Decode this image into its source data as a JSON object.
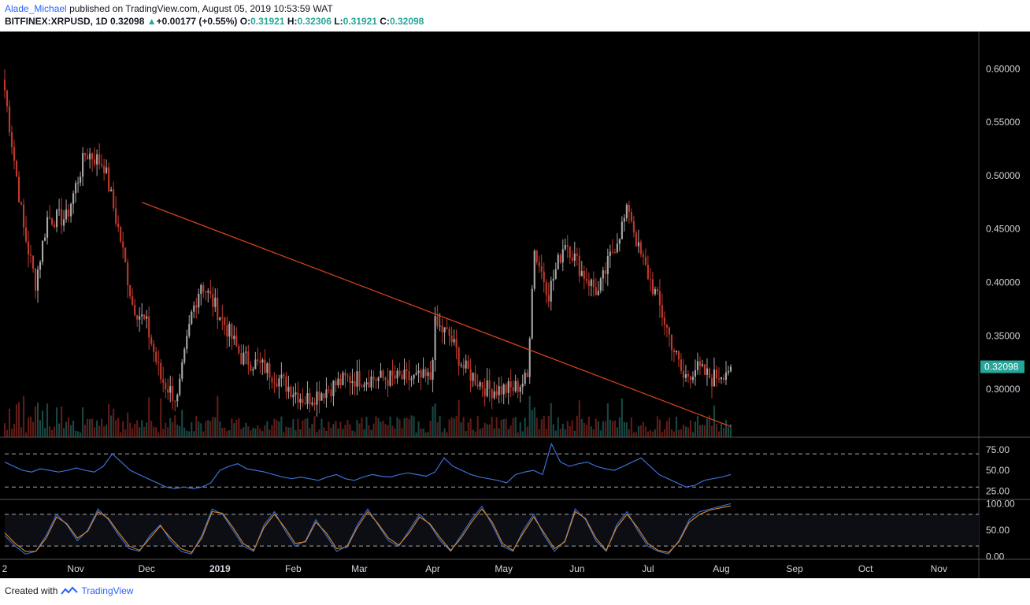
{
  "header": {
    "author": "Alade_Michael",
    "published": "published on TradingView.com, August 05, 2019 10:53:59 WAT",
    "symbol": "BITFINEX:XRPUSD, 1D",
    "last": "0.32098",
    "change_arrow": "▲",
    "change": "+0.00177 (+0.55%)",
    "o_label": "O:",
    "o_value": "0.31921",
    "h_label": "H:",
    "h_value": "0.32306",
    "l_label": "L:",
    "l_value": "0.31921",
    "c_label": "C:",
    "c_value": "0.32098"
  },
  "footer": {
    "created": "Created with",
    "brand": "TradingView"
  },
  "colors": {
    "background": "#000000",
    "up": "#a8a8a8",
    "down": "#c0392b",
    "trend": "#e0441f",
    "rsi": "#3b6fd6",
    "stoch_k": "#3b6fd6",
    "stoch_d": "#d4892b",
    "price_tag": "#26a69a",
    "axis_text": "#d1d4dc"
  },
  "chart_data": [
    {
      "type": "candlestick",
      "title": "",
      "xlabel": "",
      "ylabel": "",
      "x_tick_labels": [
        "2",
        "Nov",
        "Dec",
        "2019",
        "Feb",
        "Mar",
        "Apr",
        "May",
        "Jun",
        "Jul",
        "Aug",
        "Sep",
        "Oct",
        "Nov"
      ],
      "y_tick_labels": [
        "0.60000",
        "0.55000",
        "0.50000",
        "0.45000",
        "0.40000",
        "0.35000",
        "0.30000"
      ],
      "ylim": [
        0.255,
        0.635
      ],
      "current_price_label": "0.32098",
      "price_path": [
        {
          "date": "2018-10-02",
          "close": 0.58
        },
        {
          "date": "2018-10-10",
          "close": 0.45
        },
        {
          "date": "2018-10-15",
          "close": 0.4
        },
        {
          "date": "2018-10-20",
          "close": 0.46
        },
        {
          "date": "2018-10-28",
          "close": 0.46
        },
        {
          "date": "2018-11-05",
          "close": 0.52
        },
        {
          "date": "2018-11-07",
          "close": 0.52
        },
        {
          "date": "2018-11-13",
          "close": 0.51
        },
        {
          "date": "2018-11-20",
          "close": 0.44
        },
        {
          "date": "2018-11-25",
          "close": 0.38
        },
        {
          "date": "2018-12-01",
          "close": 0.36
        },
        {
          "date": "2018-12-07",
          "close": 0.31
        },
        {
          "date": "2018-12-14",
          "close": 0.29
        },
        {
          "date": "2018-12-20",
          "close": 0.37
        },
        {
          "date": "2018-12-24",
          "close": 0.4
        },
        {
          "date": "2019-01-01",
          "close": 0.37
        },
        {
          "date": "2019-01-10",
          "close": 0.33
        },
        {
          "date": "2019-01-20",
          "close": 0.32
        },
        {
          "date": "2019-02-06",
          "close": 0.29
        },
        {
          "date": "2019-02-24",
          "close": 0.31
        },
        {
          "date": "2019-03-01",
          "close": 0.31
        },
        {
          "date": "2019-03-20",
          "close": 0.31
        },
        {
          "date": "2019-03-31",
          "close": 0.31
        },
        {
          "date": "2019-04-02",
          "close": 0.36
        },
        {
          "date": "2019-04-08",
          "close": 0.35
        },
        {
          "date": "2019-04-14",
          "close": 0.32
        },
        {
          "date": "2019-04-24",
          "close": 0.3
        },
        {
          "date": "2019-05-05",
          "close": 0.3
        },
        {
          "date": "2019-05-11",
          "close": 0.31
        },
        {
          "date": "2019-05-13",
          "close": 0.4
        },
        {
          "date": "2019-05-14",
          "close": 0.43
        },
        {
          "date": "2019-05-20",
          "close": 0.39
        },
        {
          "date": "2019-05-27",
          "close": 0.44
        },
        {
          "date": "2019-06-03",
          "close": 0.41
        },
        {
          "date": "2019-06-10",
          "close": 0.39
        },
        {
          "date": "2019-06-16",
          "close": 0.43
        },
        {
          "date": "2019-06-23",
          "close": 0.47
        },
        {
          "date": "2019-06-27",
          "close": 0.43
        },
        {
          "date": "2019-07-04",
          "close": 0.39
        },
        {
          "date": "2019-07-10",
          "close": 0.35
        },
        {
          "date": "2019-07-16",
          "close": 0.31
        },
        {
          "date": "2019-07-21",
          "close": 0.32
        },
        {
          "date": "2019-07-28",
          "close": 0.31
        },
        {
          "date": "2019-08-05",
          "close": 0.32098
        }
      ],
      "trendline": [
        {
          "date": "2018-11-29",
          "price": 0.475
        },
        {
          "date": "2019-08-05",
          "price": 0.265
        }
      ]
    },
    {
      "type": "line",
      "title": "",
      "y_tick_labels": [
        "75.00",
        "50.00",
        "25.00"
      ],
      "ylim": [
        15,
        90
      ],
      "levels": [
        70,
        30
      ],
      "series": [
        {
          "values": [
            60,
            55,
            50,
            48,
            52,
            50,
            48,
            50,
            53,
            50,
            48,
            55,
            70,
            60,
            50,
            45,
            40,
            35,
            30,
            28,
            30,
            28,
            30,
            35,
            50,
            55,
            58,
            52,
            50,
            48,
            45,
            42,
            40,
            42,
            40,
            38,
            42,
            45,
            40,
            38,
            42,
            45,
            43,
            42,
            45,
            47,
            45,
            43,
            48,
            65,
            55,
            50,
            45,
            42,
            40,
            38,
            35,
            45,
            48,
            50,
            45,
            82,
            60,
            55,
            58,
            60,
            55,
            52,
            50,
            55,
            60,
            65,
            55,
            45,
            40,
            35,
            30,
            32,
            38,
            40,
            42,
            45
          ]
        }
      ]
    },
    {
      "type": "line",
      "title": "",
      "y_tick_labels": [
        "100.00",
        "50.00",
        "0.00"
      ],
      "ylim": [
        -5,
        108
      ],
      "levels": [
        80,
        20
      ],
      "series": [
        {
          "values": [
            40,
            20,
            5,
            10,
            40,
            80,
            60,
            30,
            50,
            90,
            70,
            40,
            15,
            10,
            40,
            60,
            30,
            10,
            5,
            40,
            90,
            80,
            50,
            20,
            10,
            60,
            85,
            50,
            20,
            30,
            70,
            40,
            10,
            20,
            60,
            90,
            60,
            30,
            20,
            50,
            80,
            60,
            30,
            10,
            40,
            70,
            95,
            60,
            20,
            10,
            50,
            80,
            40,
            10,
            30,
            90,
            70,
            30,
            10,
            60,
            85,
            50,
            20,
            10,
            5,
            30,
            70,
            85,
            90,
            95,
            100
          ]
        },
        {
          "values": [
            45,
            25,
            10,
            10,
            35,
            75,
            62,
            35,
            48,
            85,
            72,
            45,
            20,
            12,
            35,
            58,
            35,
            15,
            8,
            35,
            85,
            82,
            55,
            25,
            12,
            55,
            80,
            55,
            25,
            28,
            65,
            45,
            15,
            18,
            55,
            85,
            62,
            35,
            22,
            45,
            75,
            62,
            35,
            12,
            35,
            65,
            90,
            65,
            25,
            12,
            45,
            75,
            45,
            15,
            28,
            85,
            72,
            35,
            12,
            55,
            80,
            55,
            25,
            12,
            8,
            28,
            65,
            80,
            88,
            92,
            96
          ]
        }
      ]
    }
  ]
}
